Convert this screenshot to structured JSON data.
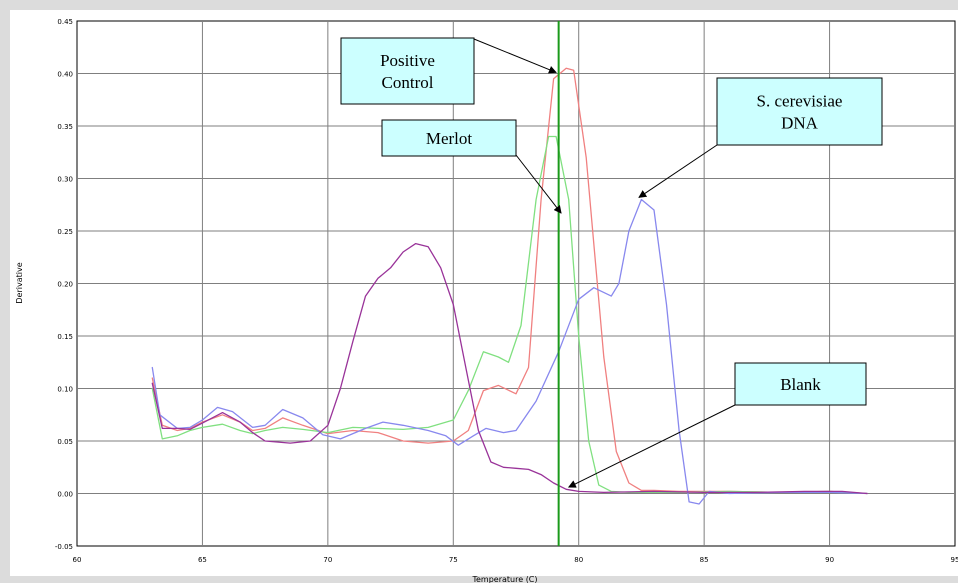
{
  "chart_data": {
    "type": "line",
    "title": "",
    "xlabel": "Temperature (C)",
    "ylabel": "Derivative",
    "xlim": [
      60,
      95
    ],
    "ylim": [
      -0.05,
      0.45
    ],
    "x_ticks": [
      "60",
      "65",
      "70",
      "75",
      "80",
      "85",
      "90",
      "95"
    ],
    "y_ticks": [
      "-0.05",
      "0.00",
      "0.05",
      "0.10",
      "0.15",
      "0.20",
      "0.25",
      "0.30",
      "0.35",
      "0.40",
      "0.45"
    ],
    "grid": true,
    "colors": {
      "positive_control": "#f08080",
      "merlot": "#80e080",
      "s_cerevisiae": "#8888ee",
      "blank": "#993399",
      "vertical_marker": "#1a9a1a"
    },
    "vertical_marker_x": 79.2,
    "series": [
      {
        "key": "positive_control",
        "points": [
          [
            63.0,
            0.11
          ],
          [
            63.4,
            0.065
          ],
          [
            64.0,
            0.06
          ],
          [
            64.5,
            0.062
          ],
          [
            65.0,
            0.068
          ],
          [
            65.8,
            0.075
          ],
          [
            66.5,
            0.068
          ],
          [
            67.0,
            0.06
          ],
          [
            67.5,
            0.062
          ],
          [
            68.2,
            0.072
          ],
          [
            69.0,
            0.065
          ],
          [
            70.0,
            0.057
          ],
          [
            71.0,
            0.06
          ],
          [
            72.0,
            0.058
          ],
          [
            73.0,
            0.05
          ],
          [
            74.0,
            0.048
          ],
          [
            75.0,
            0.05
          ],
          [
            75.6,
            0.06
          ],
          [
            76.2,
            0.098
          ],
          [
            76.8,
            0.103
          ],
          [
            77.5,
            0.095
          ],
          [
            78.0,
            0.12
          ],
          [
            78.5,
            0.28
          ],
          [
            79.0,
            0.395
          ],
          [
            79.5,
            0.405
          ],
          [
            79.8,
            0.403
          ],
          [
            80.3,
            0.32
          ],
          [
            81.0,
            0.13
          ],
          [
            81.5,
            0.04
          ],
          [
            82.0,
            0.01
          ],
          [
            82.5,
            0.003
          ],
          [
            83.0,
            0.003
          ],
          [
            84.0,
            0.002
          ],
          [
            86.0,
            0.002
          ],
          [
            88.0,
            0.001
          ],
          [
            90.0,
            0.002
          ],
          [
            91.5,
            0.0
          ]
        ]
      },
      {
        "key": "merlot",
        "points": [
          [
            63.0,
            0.1
          ],
          [
            63.4,
            0.052
          ],
          [
            64.0,
            0.055
          ],
          [
            64.5,
            0.06
          ],
          [
            65.0,
            0.063
          ],
          [
            65.8,
            0.066
          ],
          [
            66.5,
            0.06
          ],
          [
            67.0,
            0.057
          ],
          [
            67.5,
            0.06
          ],
          [
            68.2,
            0.063
          ],
          [
            69.0,
            0.061
          ],
          [
            70.0,
            0.058
          ],
          [
            71.0,
            0.063
          ],
          [
            72.0,
            0.062
          ],
          [
            73.0,
            0.061
          ],
          [
            74.0,
            0.063
          ],
          [
            75.0,
            0.07
          ],
          [
            75.6,
            0.098
          ],
          [
            76.2,
            0.135
          ],
          [
            76.8,
            0.13
          ],
          [
            77.2,
            0.125
          ],
          [
            77.7,
            0.16
          ],
          [
            78.3,
            0.28
          ],
          [
            78.8,
            0.34
          ],
          [
            79.1,
            0.34
          ],
          [
            79.6,
            0.28
          ],
          [
            80.0,
            0.15
          ],
          [
            80.4,
            0.05
          ],
          [
            80.8,
            0.008
          ],
          [
            81.3,
            0.002
          ],
          [
            82.0,
            0.001
          ],
          [
            84.0,
            0.001
          ],
          [
            86.0,
            0.002
          ],
          [
            88.0,
            0.001
          ],
          [
            90.0,
            0.002
          ],
          [
            91.5,
            0.0
          ]
        ]
      },
      {
        "key": "s_cerevisiae",
        "points": [
          [
            63.0,
            0.12
          ],
          [
            63.3,
            0.075
          ],
          [
            64.0,
            0.062
          ],
          [
            64.5,
            0.063
          ],
          [
            65.0,
            0.07
          ],
          [
            65.6,
            0.082
          ],
          [
            66.2,
            0.078
          ],
          [
            67.0,
            0.063
          ],
          [
            67.5,
            0.065
          ],
          [
            68.2,
            0.08
          ],
          [
            69.0,
            0.072
          ],
          [
            69.8,
            0.056
          ],
          [
            70.5,
            0.052
          ],
          [
            71.5,
            0.062
          ],
          [
            72.2,
            0.068
          ],
          [
            73.0,
            0.065
          ],
          [
            74.0,
            0.06
          ],
          [
            74.7,
            0.055
          ],
          [
            75.2,
            0.046
          ],
          [
            75.8,
            0.055
          ],
          [
            76.3,
            0.062
          ],
          [
            77.0,
            0.058
          ],
          [
            77.5,
            0.06
          ],
          [
            78.3,
            0.088
          ],
          [
            79.2,
            0.135
          ],
          [
            80.0,
            0.185
          ],
          [
            80.6,
            0.196
          ],
          [
            81.3,
            0.188
          ],
          [
            81.6,
            0.2
          ],
          [
            82.0,
            0.25
          ],
          [
            82.5,
            0.28
          ],
          [
            83.0,
            0.27
          ],
          [
            83.5,
            0.18
          ],
          [
            84.0,
            0.06
          ],
          [
            84.4,
            -0.008
          ],
          [
            84.8,
            -0.01
          ],
          [
            85.2,
            0.002
          ],
          [
            86.0,
            0.0
          ],
          [
            88.0,
            0.001
          ],
          [
            90.0,
            0.001
          ],
          [
            91.5,
            0.0
          ]
        ]
      },
      {
        "key": "blank",
        "points": [
          [
            63.0,
            0.105
          ],
          [
            63.4,
            0.062
          ],
          [
            64.0,
            0.062
          ],
          [
            64.5,
            0.061
          ],
          [
            65.0,
            0.067
          ],
          [
            65.8,
            0.077
          ],
          [
            66.5,
            0.068
          ],
          [
            67.0,
            0.058
          ],
          [
            67.5,
            0.05
          ],
          [
            68.5,
            0.048
          ],
          [
            69.3,
            0.05
          ],
          [
            70.0,
            0.065
          ],
          [
            70.5,
            0.1
          ],
          [
            71.0,
            0.145
          ],
          [
            71.5,
            0.188
          ],
          [
            72.0,
            0.205
          ],
          [
            72.5,
            0.215
          ],
          [
            73.0,
            0.23
          ],
          [
            73.5,
            0.238
          ],
          [
            74.0,
            0.235
          ],
          [
            74.5,
            0.215
          ],
          [
            75.0,
            0.18
          ],
          [
            75.5,
            0.12
          ],
          [
            76.0,
            0.06
          ],
          [
            76.5,
            0.03
          ],
          [
            77.0,
            0.025
          ],
          [
            77.5,
            0.024
          ],
          [
            78.0,
            0.023
          ],
          [
            78.5,
            0.018
          ],
          [
            79.0,
            0.01
          ],
          [
            79.5,
            0.004
          ],
          [
            80.0,
            0.002
          ],
          [
            81.0,
            0.001
          ],
          [
            83.0,
            0.002
          ],
          [
            85.0,
            0.001
          ],
          [
            87.0,
            0.001
          ],
          [
            89.0,
            0.002
          ],
          [
            90.5,
            0.002
          ],
          [
            91.5,
            0.0
          ]
        ]
      }
    ],
    "annotations": [
      {
        "key": "positive_control",
        "lines": [
          "Positive",
          "Control"
        ],
        "arrow_to": [
          79.1,
          0.401
        ]
      },
      {
        "key": "merlot",
        "lines": [
          "Merlot"
        ],
        "arrow_to": [
          79.3,
          0.267
        ]
      },
      {
        "key": "s_cerevisiae",
        "lines": [
          "S. cerevisiae",
          "DNA"
        ],
        "arrow_to": [
          82.4,
          0.282
        ]
      },
      {
        "key": "blank",
        "lines": [
          "Blank"
        ],
        "arrow_to": [
          79.6,
          0.006
        ]
      }
    ]
  }
}
